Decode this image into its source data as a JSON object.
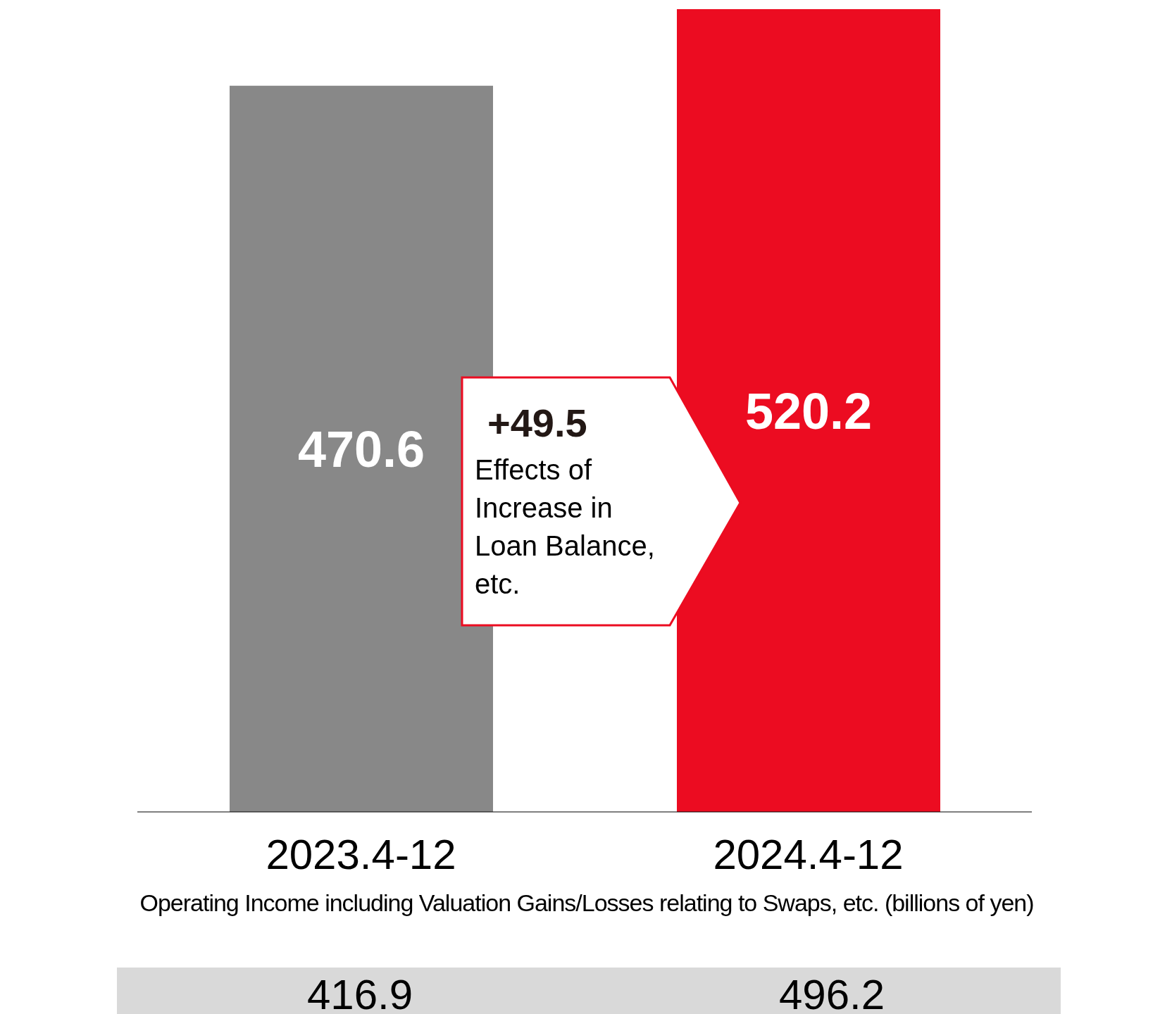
{
  "chart_data": {
    "type": "bar",
    "categories": [
      "2023.4-12",
      "2024.4-12"
    ],
    "values": [
      470.6,
      520.2
    ],
    "colors": [
      "#888888",
      "#ec0c21"
    ],
    "data_labels": true,
    "annotations": [
      "+49.5",
      "Effects of Increase in Loan Balance, etc.",
      "Operating Income including Valuation Gains/Losses relating to Swaps, etc. (billions of yen)",
      "416.9",
      "496.2"
    ]
  }
}
